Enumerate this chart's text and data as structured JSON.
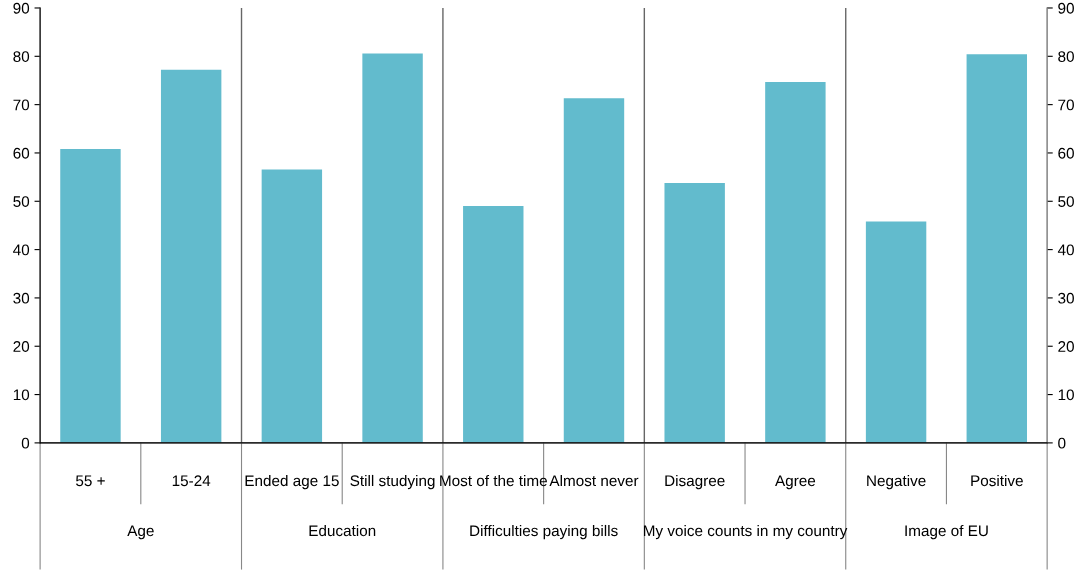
{
  "chart_data": {
    "type": "bar",
    "categories": [
      "55 +",
      "15-24",
      "Ended age 15",
      "Still studying",
      "Most of the time",
      "Almost never",
      "Disagree",
      "Agree",
      "Negative",
      "Positive"
    ],
    "values": [
      60.8,
      77.2,
      56.6,
      80.6,
      49.0,
      71.3,
      53.8,
      74.7,
      45.8,
      80.4
    ],
    "color": "#62bbcd",
    "annotations": [
      "Age",
      "Education",
      "Difficulties paying bills",
      "My voice counts in my country",
      "Image of EU"
    ],
    "ylim": [
      0,
      90
    ],
    "yticks": [
      0,
      10,
      20,
      30,
      40,
      50,
      60,
      70,
      80,
      90
    ],
    "y2lim": [
      0,
      90
    ],
    "y2ticks": [
      0,
      10,
      20,
      30,
      40,
      50,
      60,
      70,
      80,
      90
    ],
    "grid": false,
    "legend": false
  }
}
